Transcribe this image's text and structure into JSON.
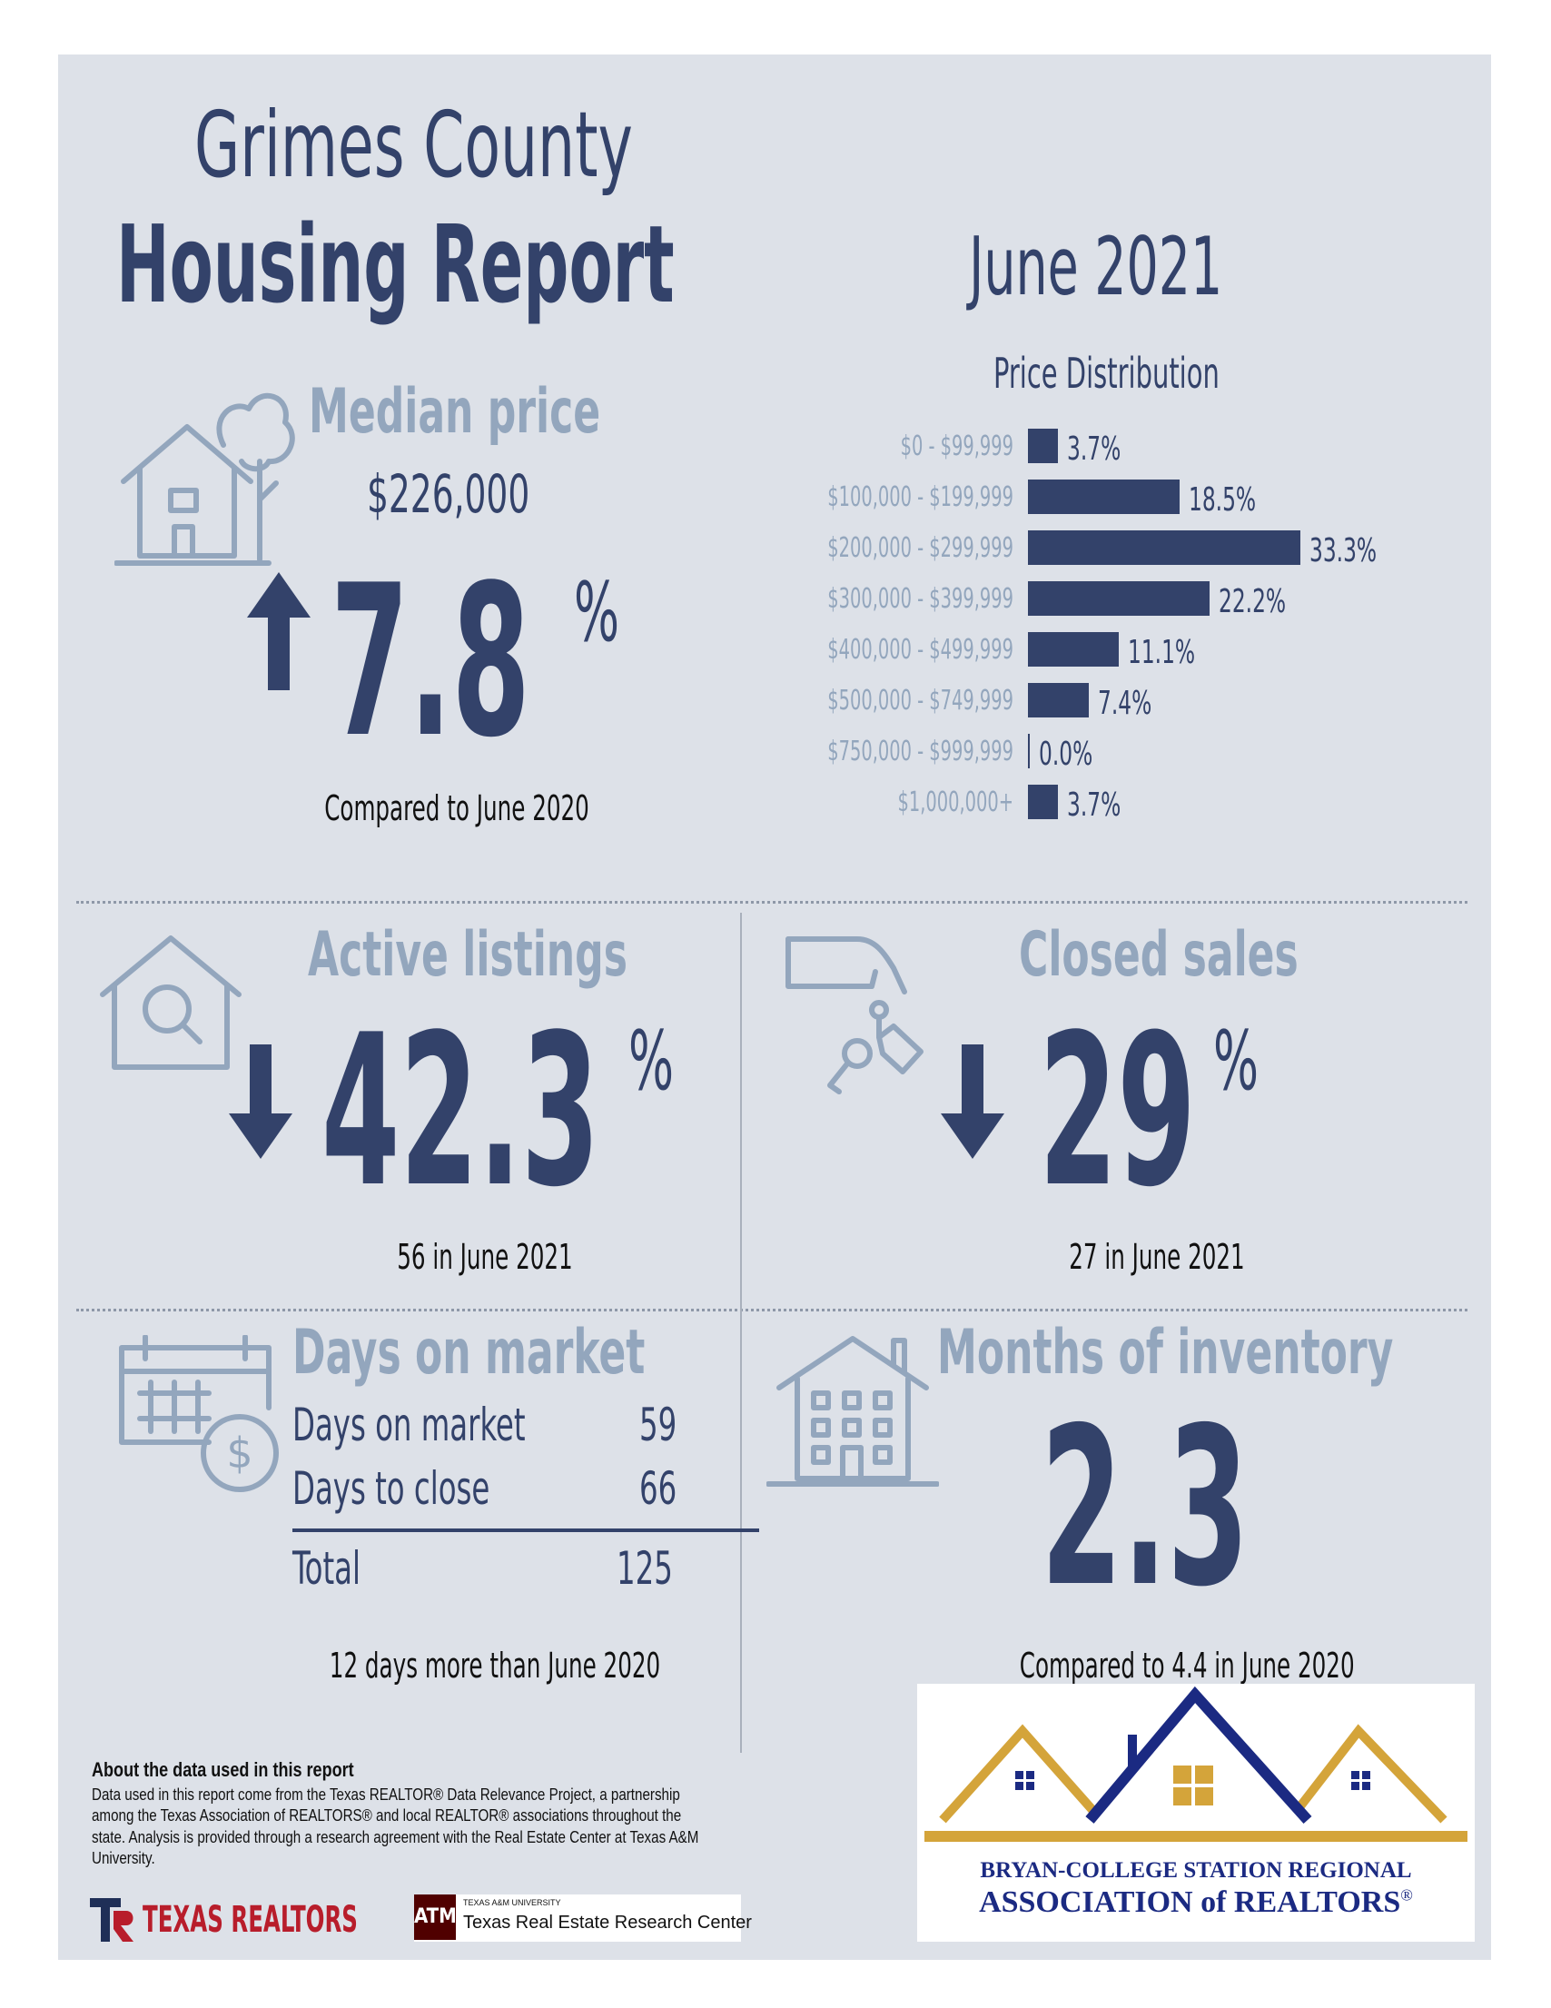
{
  "header": {
    "title_line1": "Grimes County",
    "title_line2": "Housing Report",
    "month": "June 2021"
  },
  "median_price": {
    "heading": "Median price",
    "value": "$226,000",
    "change": "7.8",
    "percent_sign": "%",
    "direction": "up",
    "caption": "Compared to June 2020"
  },
  "price_distribution": {
    "title": "Price Distribution"
  },
  "chart_data": {
    "type": "bar",
    "title": "Price Distribution",
    "orientation": "horizontal",
    "categories": [
      "$0 - $99,999",
      "$100,000 - $199,999",
      "$200,000 - $299,999",
      "$300,000 - $399,999",
      "$400,000 - $499,999",
      "$500,000 - $749,999",
      "$750,000 - $999,999",
      "$1,000,000+"
    ],
    "values": [
      3.7,
      18.5,
      33.3,
      22.2,
      11.1,
      7.4,
      0.0,
      3.7
    ],
    "value_labels": [
      "3.7%",
      "18.5%",
      "33.3%",
      "22.2%",
      "11.1%",
      "7.4%",
      "0.0%",
      "3.7%"
    ],
    "xlim": [
      0,
      33.3
    ],
    "grid": false,
    "color": "#33426a"
  },
  "active_listings": {
    "heading": "Active listings",
    "change": "42.3",
    "percent_sign": "%",
    "direction": "down",
    "caption": "56 in June 2021"
  },
  "closed_sales": {
    "heading": "Closed sales",
    "change": "29",
    "percent_sign": "%",
    "direction": "down",
    "caption": "27 in June 2021"
  },
  "days_on_market": {
    "heading": "Days on market",
    "rows": [
      {
        "label": "Days on market",
        "value": "59"
      },
      {
        "label": "Days to close",
        "value": "66"
      }
    ],
    "total_label": "Total",
    "total_value": "125",
    "caption": "12 days more than June 2020"
  },
  "months_inventory": {
    "heading": "Months of inventory",
    "value": "2.3",
    "caption": "Compared to 4.4 in June 2020"
  },
  "about": {
    "heading": "About the data used in this report",
    "body": "Data used in this report come from the Texas REALTOR® Data Relevance Project, a partnership among the Texas Association of REALTORS® and local REALTOR® associations throughout the state. Analysis is provided through a research agreement with the Real Estate Center at Texas A&M University."
  },
  "logos": {
    "texas_realtors": "TEXAS REALTORS",
    "tamu_small": "TEXAS A&M UNIVERSITY",
    "tamu_center": "Texas Real Estate Research Center",
    "brazos_line1": "BRYAN-COLLEGE STATION REGIONAL",
    "brazos_line2": "ASSOCIATION of REALTORS",
    "brazos_mark": "®"
  },
  "colors": {
    "navy": "#33426a",
    "steel": "#93a6bd",
    "background": "#dde1e8",
    "gold": "#d4a43a"
  },
  "icons": [
    "house-tree-icon",
    "arrow-up-icon",
    "house-search-icon",
    "arrow-down-icon",
    "hand-keys-icon",
    "calendar-dollar-icon",
    "building-icon"
  ]
}
